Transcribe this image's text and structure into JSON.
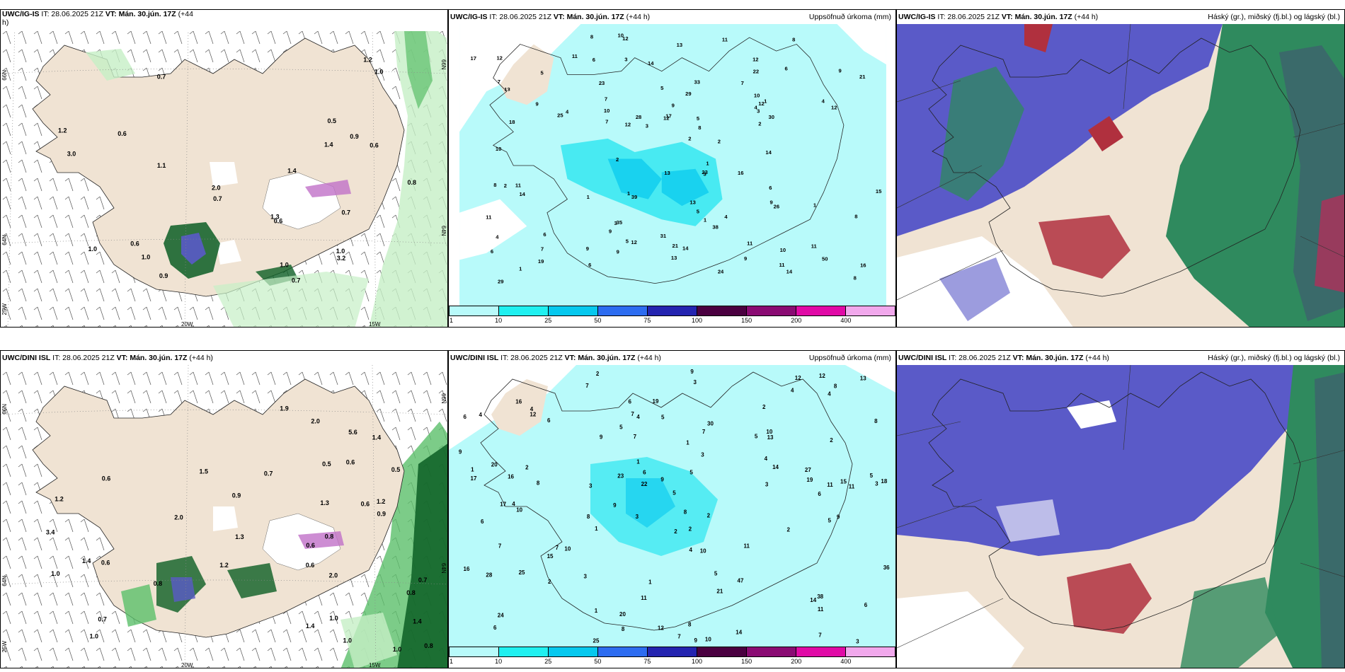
{
  "panels": [
    {
      "id": "p1",
      "model": "UWC/IG-IS",
      "title_rest": " IT: 28.06.2025 21Z ",
      "vt": "VT: Mán. 30.jún. 17Z",
      "lead": " (+44",
      "lead_wrap": "h)",
      "right": "",
      "lat_left": [
        "66N",
        "64N",
        "25W"
      ],
      "lat_right": [
        "66N",
        "64N"
      ],
      "lon": [
        "20W",
        "15W"
      ],
      "values": [
        "0.7",
        "0.7",
        "0.6",
        "0.6",
        "0.9",
        "1.0",
        "0.8",
        "1.1",
        "0.7",
        "1.0",
        "1.0",
        "1.2",
        "2.0",
        "1.3",
        "1.4",
        "1.2",
        "3.0",
        "1.0",
        "0.7",
        "0.6",
        "1.0",
        "0.6",
        "0.9",
        "3.2",
        "1.4",
        "0.5"
      ]
    },
    {
      "id": "p2",
      "model": "UWC/IG-IS",
      "title_rest": " IT: 28.06.2025 21Z ",
      "vt": "VT: Mán. 30.jún. 17Z",
      "lead": " (+44 h)",
      "right": "Uppsöfnuð úrkoma (mm)",
      "values": [
        "1",
        "1",
        "1",
        "13",
        "14",
        "11",
        "11",
        "12",
        "10",
        "9",
        "8",
        "7",
        "12",
        "13",
        "11",
        "10",
        "9",
        "14",
        "13",
        "21",
        "17",
        "19",
        "13",
        "16",
        "26",
        "22",
        "28",
        "29",
        "12",
        "38",
        "50",
        "39",
        "33",
        "29",
        "23",
        "24",
        "21",
        "30",
        "18",
        "31",
        "25",
        "35",
        "23",
        "9",
        "14",
        "12",
        "9",
        "14",
        "15",
        "16",
        "13",
        "17",
        "12",
        "11",
        "6",
        "5",
        "4",
        "3",
        "2",
        "6",
        "8",
        "10",
        "12",
        "9",
        "14",
        "11",
        "8",
        "7",
        "6",
        "5",
        "4",
        "3",
        "2",
        "1",
        "9",
        "8",
        "7",
        "6",
        "5",
        "4",
        "3",
        "2",
        "1",
        "12",
        "11",
        "10",
        "9",
        "8",
        "7",
        "6",
        "5",
        "4",
        "3",
        "2",
        "1",
        "12",
        "11",
        "10",
        "9",
        "8",
        "7",
        "6",
        "5",
        "4",
        "3",
        "2",
        "1"
      ],
      "colorbar": [
        "1",
        "10",
        "25",
        "50",
        "75",
        "100",
        "150",
        "200",
        "400"
      ]
    },
    {
      "id": "p3",
      "model": "UWC/IG-IS",
      "title_rest": " IT: 28.06.2025 21Z ",
      "vt": "VT: Mán. 30.jún. 17Z",
      "lead": " (+44 h)",
      "right": "Háský (gr.), miðský (fj.bl.) og lágský (bl.)"
    },
    {
      "id": "p4",
      "model": "UWC/DINI ISL",
      "title_rest": " IT: 28.06.2025 21Z ",
      "vt": "VT: Mán. 30.jún. 17Z",
      "lead": " (+44 h)",
      "right": "",
      "lat_left": [
        "66N",
        "64N",
        "25W"
      ],
      "lat_right": [
        "66N",
        "64N"
      ],
      "lon": [
        "20W",
        "15W"
      ],
      "values": [
        "0.6",
        "0.7",
        "0.6",
        "0.8",
        "1.4",
        "0.6",
        "1.2",
        "0.9",
        "1.4",
        "1.0",
        "0.8",
        "0.6",
        "1.0",
        "2.0",
        "0.8",
        "1.0",
        "1.4",
        "1.4",
        "5.6",
        "1.5",
        "1.2",
        "3.4",
        "1.3",
        "2.0",
        "0.9",
        "0.7",
        "0.6",
        "0.5",
        "0.8",
        "0.6",
        "0.5",
        "1.9",
        "1.2",
        "1.0",
        "2.0",
        "1.0",
        "0.7",
        "1.3"
      ]
    },
    {
      "id": "p5",
      "model": "UWC/DINI ISL",
      "title_rest": " IT: 28.06.2025 21Z ",
      "vt": "VT: Mán. 30.jún. 17Z",
      "lead": " (+44 h)",
      "right": "Uppsöfnuð úrkoma (mm)",
      "values": [
        "2",
        "2",
        "3",
        "3",
        "2",
        "4",
        "4",
        "5",
        "6",
        "7",
        "5",
        "6",
        "7",
        "8",
        "9",
        "10",
        "11",
        "12",
        "14",
        "15",
        "16",
        "17",
        "18",
        "15",
        "16",
        "20",
        "22",
        "19",
        "38",
        "28",
        "14",
        "30",
        "25",
        "23",
        "47",
        "36",
        "27",
        "20",
        "13",
        "19",
        "24",
        "25",
        "14",
        "16",
        "12",
        "13",
        "11",
        "10",
        "9",
        "8",
        "7",
        "6",
        "5",
        "4",
        "3",
        "2",
        "1",
        "9",
        "8",
        "7",
        "6",
        "5",
        "4",
        "3",
        "2",
        "1",
        "11",
        "10",
        "9",
        "8",
        "7",
        "6",
        "5",
        "4",
        "3",
        "2",
        "1",
        "12",
        "11",
        "10",
        "9",
        "8",
        "7",
        "6",
        "5",
        "4",
        "3",
        "2",
        "1",
        "21",
        "17",
        "9",
        "8",
        "7",
        "6",
        "5",
        "4",
        "3",
        "2",
        "1",
        "12",
        "11",
        "10",
        "9",
        "8",
        "7",
        "6",
        "5",
        "4",
        "3",
        "2",
        "1"
      ],
      "colorbar": [
        "1",
        "10",
        "25",
        "50",
        "75",
        "100",
        "150",
        "200",
        "400"
      ]
    },
    {
      "id": "p6",
      "model": "UWC/DINI ISL",
      "title_rest": " IT: 28.06.2025 21Z ",
      "vt": "VT: Mán. 30.jún. 17Z",
      "lead": " (+44 h)",
      "right": "Háský (gr.), miðský (fj.bl.) og lágský (bl.)"
    }
  ],
  "colors": {
    "land": "#f0e3d3",
    "sea": "#ffffff",
    "precip_light": "#b8fafa",
    "precip_mid": "#2ce6f0",
    "precip_high": "#06c8ee",
    "cloud_high": "#2f8a5e",
    "cloud_mid": "#5a5ac8",
    "cloud_low": "#b0303e",
    "green_light": "#c6efc6",
    "green_mid": "#5bbf6a",
    "green_dark": "#0c5e24",
    "colorbar": [
      "#b8fafa",
      "#20f0f0",
      "#06c8ee",
      "#2d6cf0",
      "#2424b0",
      "#4a0040",
      "#8a0b73",
      "#e00aa6",
      "#f1a8ec"
    ]
  }
}
